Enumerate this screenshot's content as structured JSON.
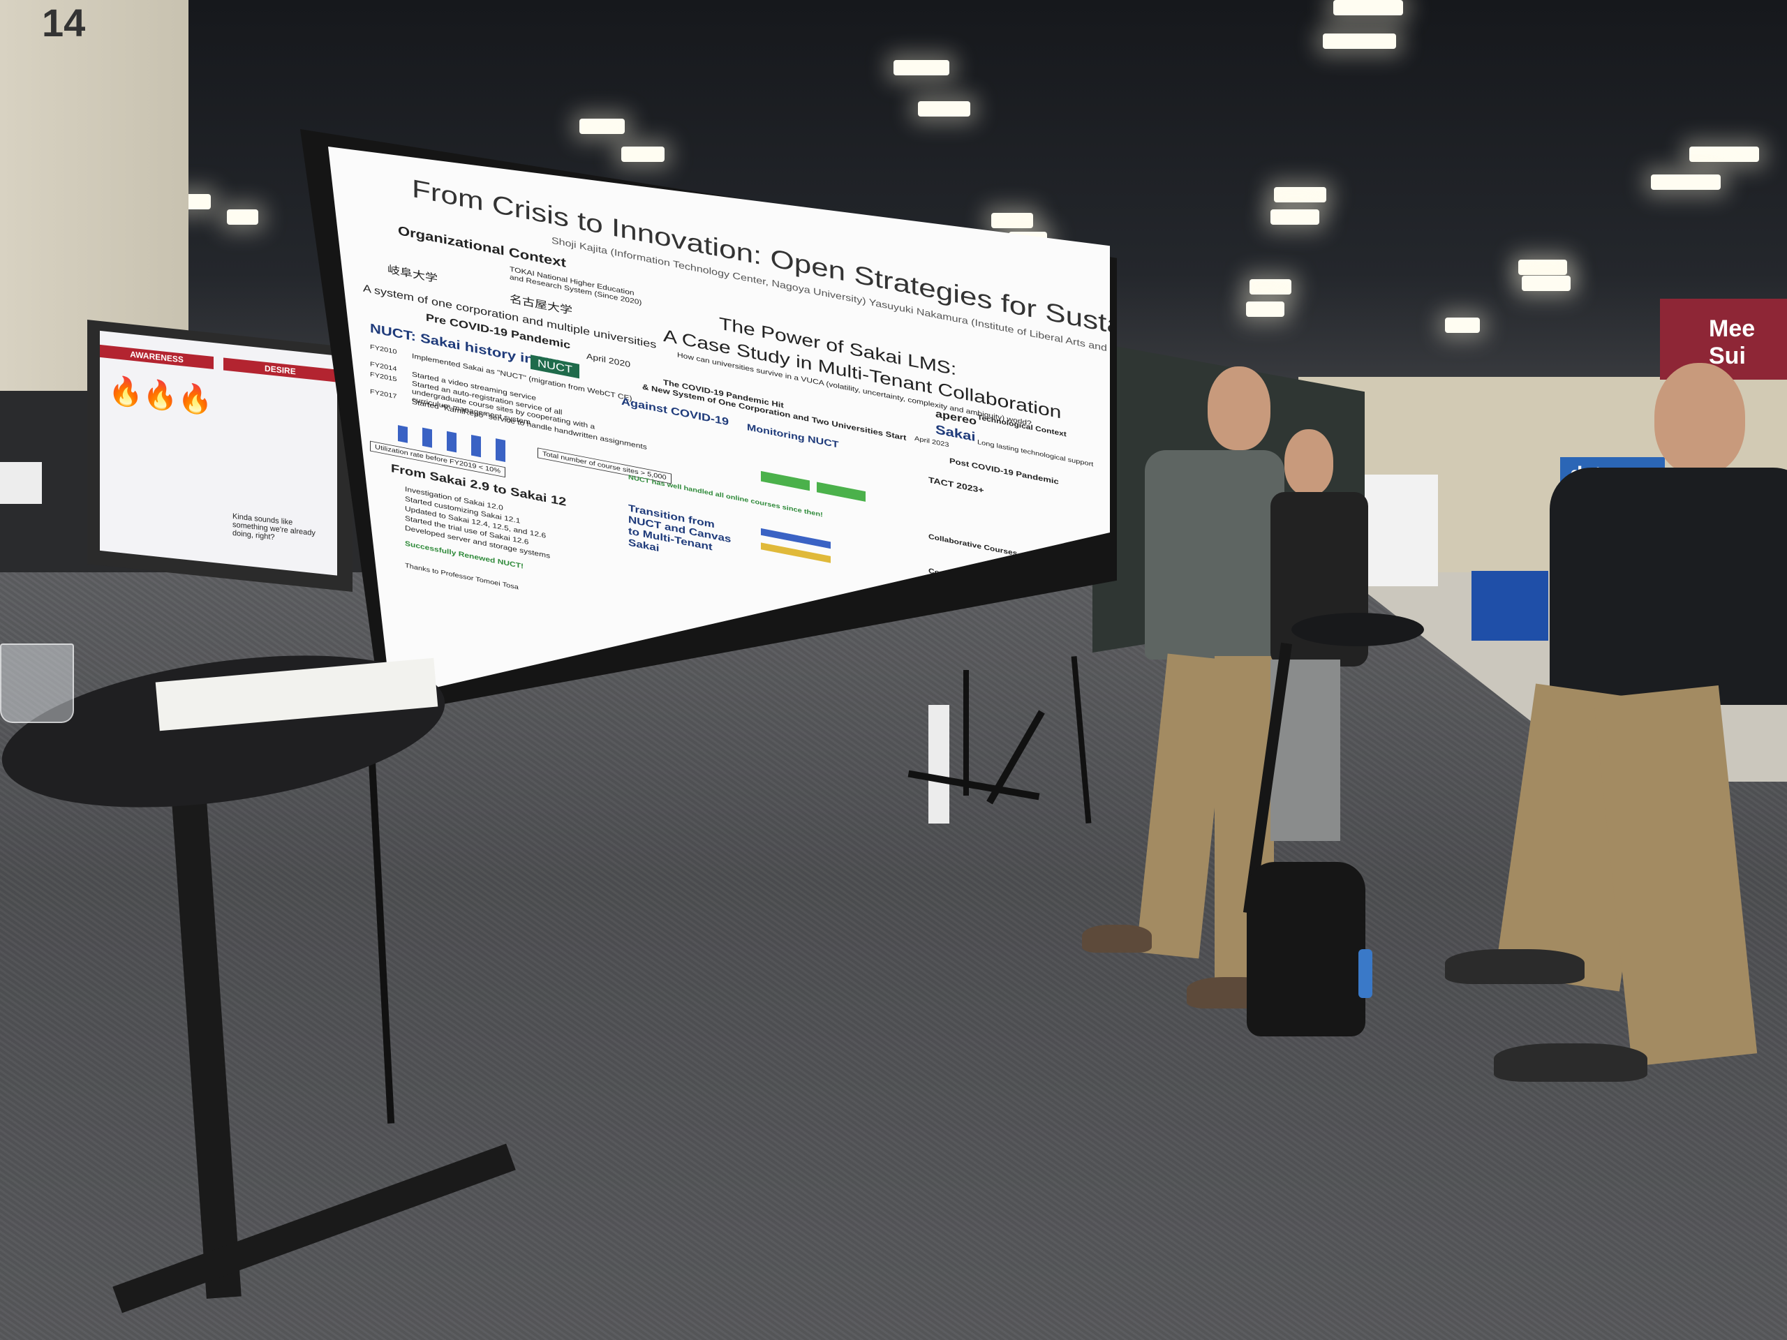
{
  "scene": {
    "colors": {
      "poster_bg": "#fbfbfb",
      "board": "#151515",
      "carpet": "#55565a",
      "booth_red": "#8e2636",
      "booth_blue": "#2b66b6"
    }
  },
  "signs": {
    "corner_sign": "14",
    "left_poster_awareness": "AWARENESS",
    "left_poster_desire": "DESIRE",
    "left_poster_quote": "Kinda sounds like something we're already doing, right?",
    "booth_sign_text": "Mee Sui",
    "booth_logo": "data"
  },
  "poster": {
    "title": "From Crisis to Innovation: Open Strategies for Sustainable Online Learning",
    "authors": "Shoji Kajita (Information Technology Center, Nagoya University)  Yasuyuki Nakamura (Institute of Liberal Arts and Sciences, Nagoya University)",
    "org_context": "Organizational Context",
    "tokai": "TOKAI National Higher Education and Research System (Since 2020)",
    "gifu": "岐阜大学",
    "nagoya": "名古屋大学",
    "one_corp": "A system of one corporation and multiple universities",
    "power_title": "The Power of Sakai LMS:",
    "case_study": "A Case Study in Multi-Tenant Collaboration",
    "vuca": "How can universities survive in a VUCA (volatility, uncertainty, complexity and ambiguity) world?",
    "pre_covid": "Pre COVID-19 Pandemic",
    "nuct_history": "NUCT: Sakai history in NU",
    "nuct_logo": "NUCT",
    "fy2010": "FY2010",
    "fy2014": "FY2014",
    "fy2015": "FY2015",
    "fy2017": "FY2017",
    "implemented": "Implemented Sakai as \"NUCT\" (migration from WebCT CE)",
    "video": "Started a video streaming service",
    "autoreg": "Started an auto-registration service of all undergraduate course sites by cooperating with a curriculum management system",
    "kamirepo": "Started \"KamiRepo\" service to handle handwritten assignments",
    "total_sites": "Total number of course sites > 5,000",
    "utilization": "Utilization rate before FY2019 < 10%",
    "sakai29": "From Sakai 2.9 to Sakai 12",
    "inv": "Investigation of Sakai 12.0",
    "customizing": "Started customizing Sakai 12.1",
    "updated": "Updated to Sakai 12.4, 12.5, and 12.6",
    "trial": "Started the trial use of Sakai 12.6",
    "developed": "Developed server and storage systems",
    "renewed": "Successfully Renewed NUCT!",
    "april2020": "April 2020",
    "pandemic_hit": "The COVID-19 Pandemic Hit",
    "new_system": "& New System of One Corporation and Two Universities Start",
    "against": "Against COVID-19",
    "monitoring": "Monitoring NUCT",
    "handled": "NUCT has well handled all online courses since then!",
    "transition": "Transition from NUCT and Canvas to Multi-Tenant Sakai",
    "apereo": "apereo",
    "sakai": "Sakai",
    "tech_context": "Technological Context",
    "long_lasting": "Long lasting technological support",
    "april2023": "April 2023",
    "post_covid": "Post COVID-19 Pandemic",
    "tact": "TACT 2023+",
    "collab": "Collaborative Courses",
    "conclusions": "Conclusions",
    "thanks": "Thanks to Professor Tomoei Tosa"
  }
}
